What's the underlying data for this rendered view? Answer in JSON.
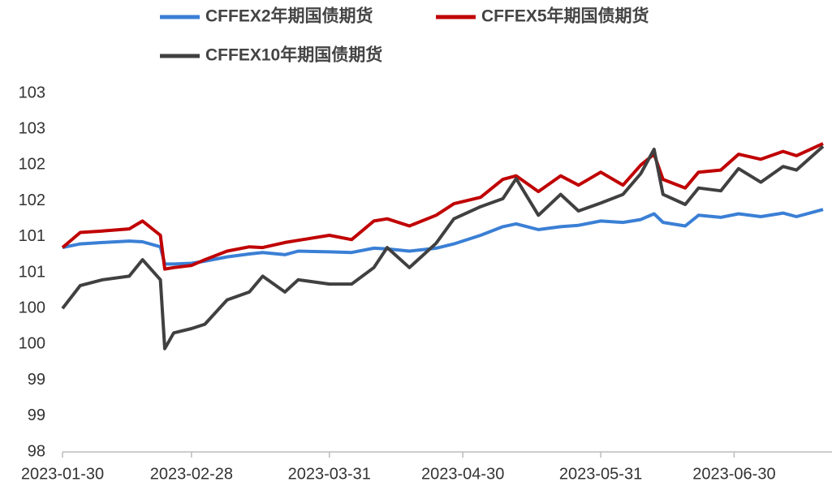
{
  "chart_data": {
    "type": "line",
    "x": [
      "2023-01-30",
      "2023-02-03",
      "2023-02-08",
      "2023-02-14",
      "2023-02-17",
      "2023-02-21",
      "2023-02-22",
      "2023-02-24",
      "2023-02-28",
      "2023-03-03",
      "2023-03-08",
      "2023-03-13",
      "2023-03-16",
      "2023-03-21",
      "2023-03-24",
      "2023-03-31",
      "2023-04-05",
      "2023-04-10",
      "2023-04-13",
      "2023-04-18",
      "2023-04-24",
      "2023-04-28",
      "2023-05-04",
      "2023-05-09",
      "2023-05-12",
      "2023-05-17",
      "2023-05-22",
      "2023-05-26",
      "2023-05-31",
      "2023-06-05",
      "2023-06-09",
      "2023-06-12",
      "2023-06-14",
      "2023-06-19",
      "2023-06-22",
      "2023-06-27",
      "2023-07-01",
      "2023-07-06",
      "2023-07-11",
      "2023-07-14",
      "2023-07-20"
    ],
    "series": [
      {
        "name": "CFFEX2年期国债期货",
        "color": "#3a7fd5",
        "values": [
          100.85,
          100.9,
          100.92,
          100.94,
          100.93,
          100.86,
          100.62,
          100.62,
          100.63,
          100.66,
          100.72,
          100.76,
          100.78,
          100.75,
          100.8,
          100.79,
          100.78,
          100.84,
          100.83,
          100.8,
          100.84,
          100.9,
          101.02,
          101.14,
          101.18,
          101.1,
          101.14,
          101.16,
          101.22,
          101.2,
          101.24,
          101.32,
          101.2,
          101.15,
          101.3,
          101.27,
          101.32,
          101.28,
          101.33,
          101.28,
          101.38
        ]
      },
      {
        "name": "CFFEX5年期国债期货",
        "color": "#c00000",
        "values": [
          100.85,
          101.06,
          101.08,
          101.11,
          101.22,
          101.02,
          100.55,
          100.57,
          100.6,
          100.68,
          100.8,
          100.86,
          100.85,
          100.92,
          100.95,
          101.02,
          100.96,
          101.22,
          101.25,
          101.15,
          101.3,
          101.46,
          101.55,
          101.8,
          101.85,
          101.63,
          101.85,
          101.72,
          101.9,
          101.72,
          102.0,
          102.15,
          101.8,
          101.68,
          101.9,
          101.93,
          102.15,
          102.08,
          102.19,
          102.13,
          102.3
        ]
      },
      {
        "name": "CFFEX10年期国债期货",
        "color": "#404040",
        "values": [
          100.0,
          100.32,
          100.4,
          100.45,
          100.68,
          100.4,
          99.44,
          99.66,
          99.72,
          99.78,
          100.12,
          100.23,
          100.45,
          100.23,
          100.4,
          100.34,
          100.34,
          100.57,
          100.85,
          100.57,
          100.91,
          101.25,
          101.42,
          101.53,
          101.81,
          101.3,
          101.59,
          101.36,
          101.47,
          101.59,
          101.88,
          102.22,
          101.59,
          101.45,
          101.68,
          101.64,
          101.95,
          101.76,
          101.98,
          101.93,
          102.26
        ]
      }
    ],
    "xlim": [
      "2023-01-30",
      "2023-07-22"
    ],
    "xticks": [
      "2023-01-30",
      "2023-02-28",
      "2023-03-31",
      "2023-04-30",
      "2023-05-31",
      "2023-06-30"
    ],
    "ylim": [
      98,
      103
    ],
    "yticks": [
      98,
      {
        "value": 98.5,
        "label": "99"
      },
      99,
      {
        "value": 99.5,
        "label": "100"
      },
      100,
      {
        "value": 100.5,
        "label": "101"
      },
      101,
      {
        "value": 101.5,
        "label": "102"
      },
      102,
      {
        "value": 102.5,
        "label": "103"
      },
      103
    ],
    "grid": false
  }
}
